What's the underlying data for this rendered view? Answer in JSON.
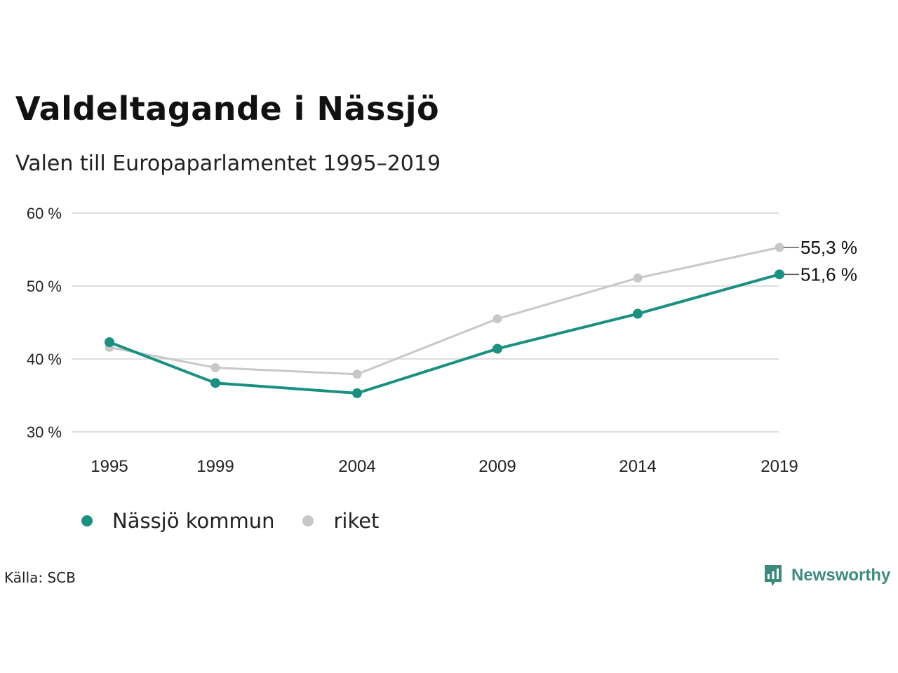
{
  "title": "Valdeltagande i Nässjö",
  "subtitle": "Valen till Europaparlamentet 1995–2019",
  "source": "Källa: SCB",
  "brand": {
    "name": "Newsworthy",
    "icon": "newsworthy-logo-icon",
    "color": "#3d8b7d"
  },
  "chart_data": {
    "type": "line",
    "categories": [
      "1995",
      "1999",
      "2004",
      "2009",
      "2014",
      "2019"
    ],
    "x": [
      1995,
      1999,
      2004,
      2009,
      2014,
      2019
    ],
    "yticks": [
      "30 %",
      "40 %",
      "50 %",
      "60 %"
    ],
    "ylim": [
      30,
      60
    ],
    "grid": true,
    "legend_position": "bottom-left",
    "series": [
      {
        "name": "Nässjö kommun",
        "color": "#1a9080",
        "values": [
          42.3,
          36.7,
          35.3,
          41.4,
          46.2,
          51.6
        ],
        "end_label": "51,6 %"
      },
      {
        "name": "riket",
        "color": "#c8c8c8",
        "values": [
          41.6,
          38.8,
          37.9,
          45.5,
          51.1,
          55.3
        ],
        "end_label": "55,3 %"
      }
    ]
  }
}
